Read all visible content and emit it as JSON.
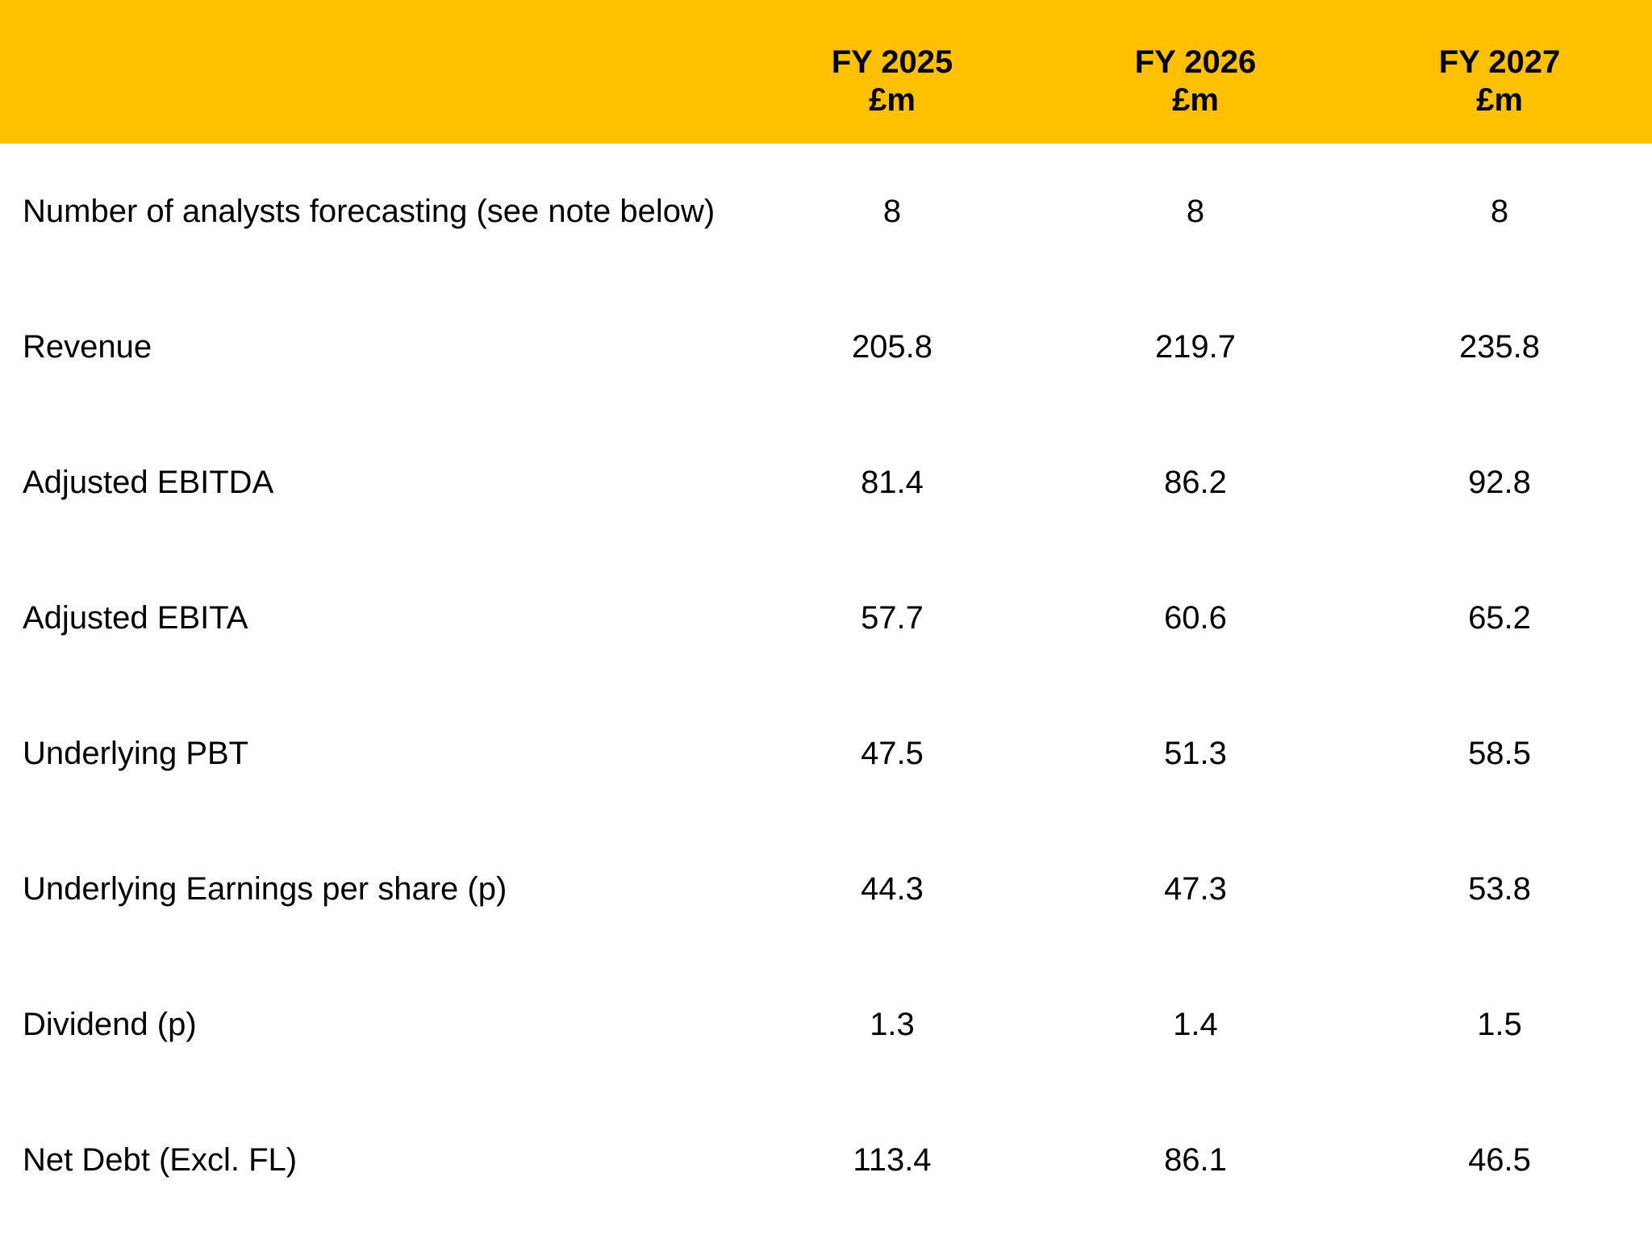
{
  "colors": {
    "header_background": "#FFC000",
    "text": "#000000",
    "page_background": "#FFFFFF"
  },
  "header": {
    "columns": [
      {
        "year": "FY 2025",
        "unit": "£m"
      },
      {
        "year": "FY 2026",
        "unit": "£m"
      },
      {
        "year": "FY 2027",
        "unit": "£m"
      }
    ]
  },
  "table": {
    "rows": [
      {
        "label": "Number of analysts forecasting (see note below)",
        "values": [
          "8",
          "8",
          "8"
        ]
      },
      {
        "label": "Revenue",
        "values": [
          "205.8",
          "219.7",
          "235.8"
        ]
      },
      {
        "label": "Adjusted EBITDA",
        "values": [
          "81.4",
          "86.2",
          "92.8"
        ]
      },
      {
        "label": "Adjusted EBITA",
        "values": [
          "57.7",
          "60.6",
          "65.2"
        ]
      },
      {
        "label": "Underlying PBT",
        "values": [
          "47.5",
          "51.3",
          "58.5"
        ]
      },
      {
        "label": "Underlying Earnings per share (p)",
        "values": [
          "44.3",
          "47.3",
          "53.8"
        ]
      },
      {
        "label": "Dividend (p)",
        "values": [
          "1.3",
          "1.4",
          "1.5"
        ]
      },
      {
        "label": "Net Debt (Excl. FL)",
        "values": [
          "113.4",
          "86.1",
          "46.5"
        ]
      }
    ]
  }
}
